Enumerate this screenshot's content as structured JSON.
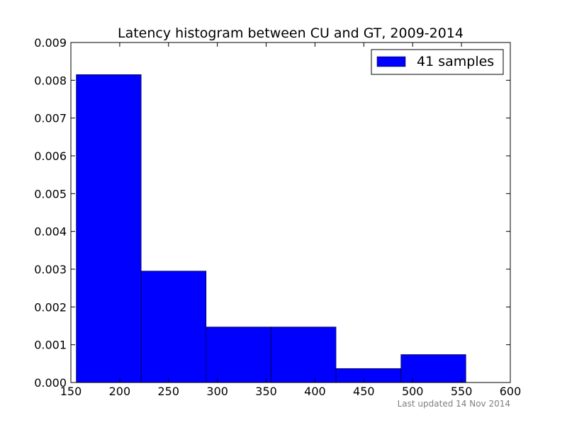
{
  "chart_data": {
    "type": "bar",
    "title": "Latency histogram between CU and GT, 2009-2014",
    "xlabel": "",
    "ylabel": "",
    "xlim": [
      150,
      600
    ],
    "ylim": [
      0,
      0.009
    ],
    "xticks": [
      "150",
      "200",
      "250",
      "300",
      "350",
      "400",
      "450",
      "500",
      "550",
      "600"
    ],
    "yticks": [
      "0.000",
      "0.001",
      "0.002",
      "0.003",
      "0.004",
      "0.005",
      "0.006",
      "0.007",
      "0.008",
      "0.009"
    ],
    "grid": false,
    "legend_position": "top-right",
    "series": [
      {
        "name": "41 samples",
        "color": "#0000ff",
        "bins": [
          {
            "x0": 155.5,
            "x1": 222.0,
            "value": 0.00815
          },
          {
            "x0": 222.0,
            "x1": 288.5,
            "value": 0.00295
          },
          {
            "x0": 288.5,
            "x1": 355.0,
            "value": 0.00147
          },
          {
            "x0": 355.0,
            "x1": 421.5,
            "value": 0.00147
          },
          {
            "x0": 421.5,
            "x1": 488.0,
            "value": 0.00037
          },
          {
            "x0": 488.0,
            "x1": 554.5,
            "value": 0.00074
          }
        ]
      }
    ],
    "footnote": "Last updated 14 Nov 2014"
  }
}
